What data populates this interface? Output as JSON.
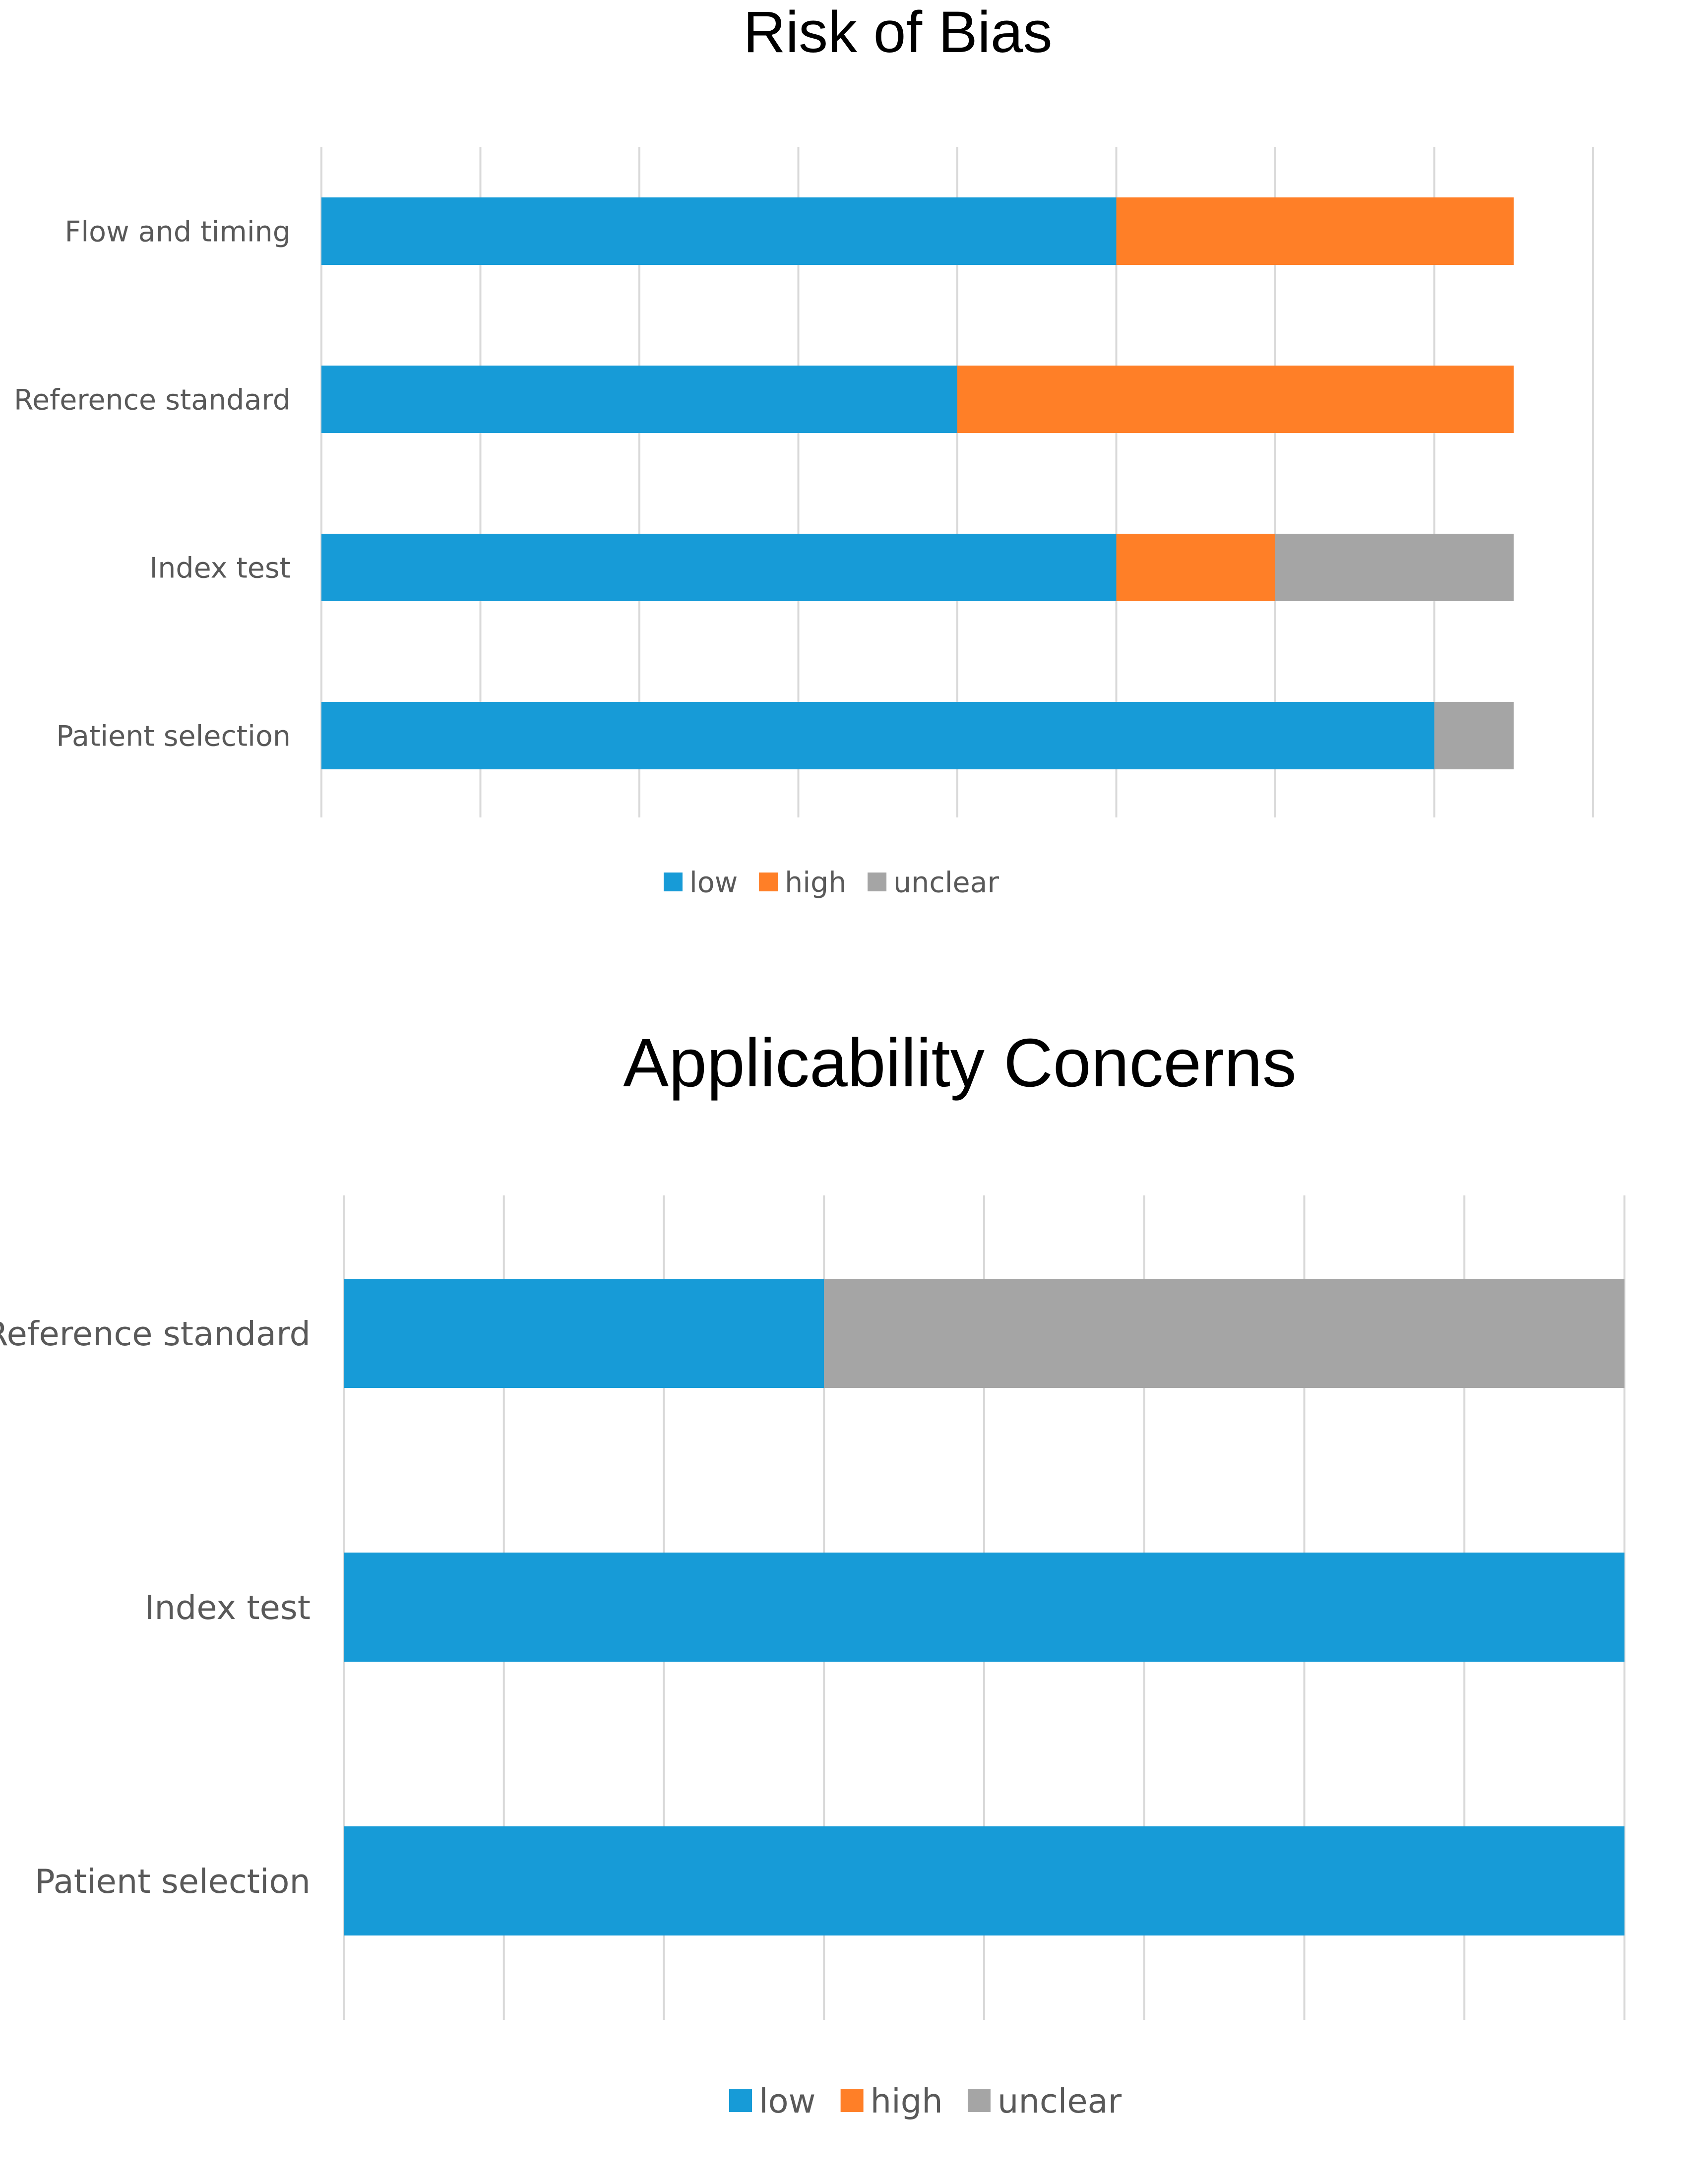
{
  "colors": {
    "low": "#179bd7",
    "high": "#ff7f27",
    "unclear": "#a5a5a5",
    "grid": "#d9d9d9"
  },
  "chart_data": [
    {
      "type": "bar",
      "orientation": "horizontal",
      "stacked": true,
      "title": "Risk of Bias",
      "categories": [
        "Flow and timing",
        "Reference standard",
        "Index test",
        "Patient selection"
      ],
      "series": [
        {
          "name": "low",
          "values": [
            5,
            4,
            5,
            7
          ]
        },
        {
          "name": "high",
          "values": [
            2.5,
            3.5,
            1,
            0
          ]
        },
        {
          "name": "unclear",
          "values": [
            0,
            0,
            1.5,
            0.5
          ]
        }
      ],
      "xlim": [
        0,
        8
      ],
      "grid": true,
      "legend": "bottom"
    },
    {
      "type": "bar",
      "orientation": "horizontal",
      "stacked": true,
      "title": "Applicability Concerns",
      "categories": [
        "Reference standard",
        "Index test",
        "Patient selection"
      ],
      "series": [
        {
          "name": "low",
          "values": [
            3,
            8,
            8
          ]
        },
        {
          "name": "high",
          "values": [
            0,
            0,
            0
          ]
        },
        {
          "name": "unclear",
          "values": [
            5,
            0,
            0
          ]
        }
      ],
      "xlim": [
        0,
        8
      ],
      "grid": true,
      "legend": "bottom"
    }
  ]
}
